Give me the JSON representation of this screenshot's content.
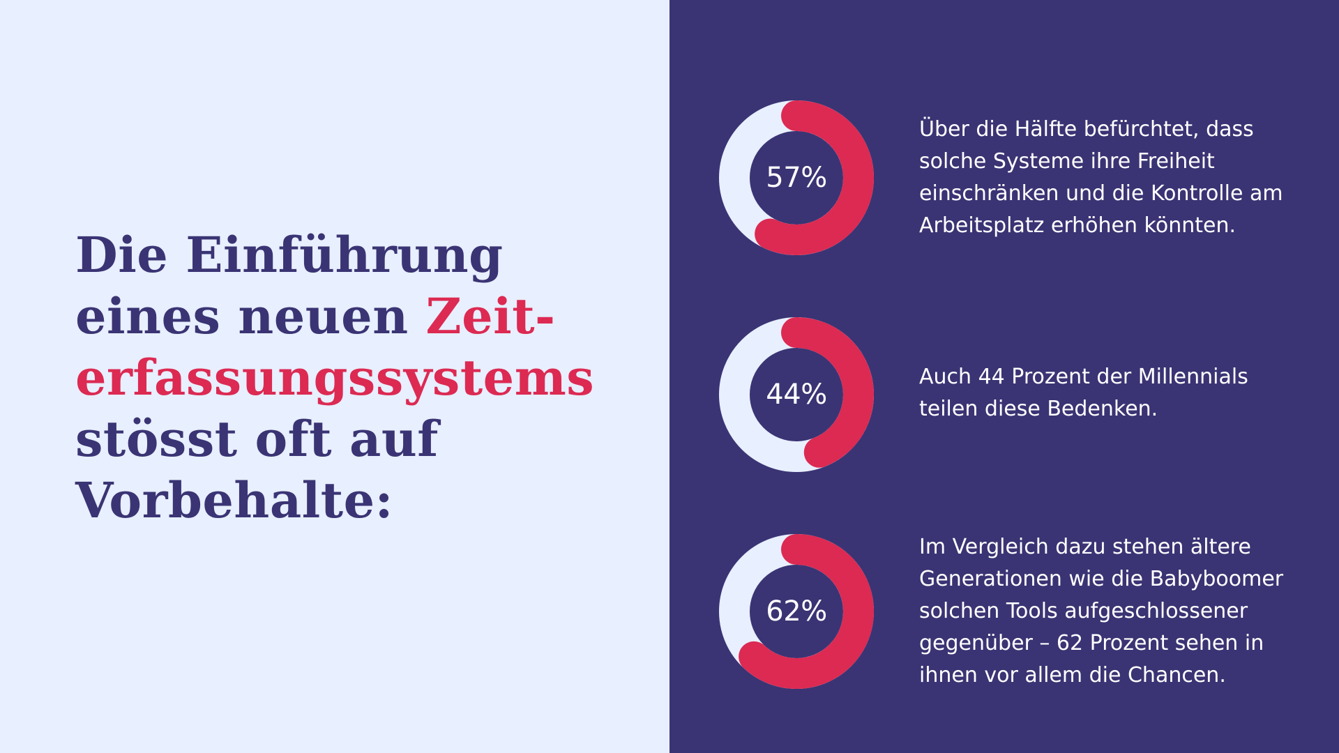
{
  "colors": {
    "left_bg": "#e8effe",
    "right_bg": "#3a3474",
    "navy": "#3a3474",
    "accent": "#dc2a52",
    "ring_track": "#e8effe",
    "text_light": "#ffffff"
  },
  "headline": {
    "line1": "Die Einführung",
    "line2_a": "eines neuen ",
    "line2_b": "Zeit-",
    "line3": "erfassungssystems",
    "line4": "stösst oft auf",
    "line5": "Vorbehalte:"
  },
  "stats": [
    {
      "label": "57%",
      "text": "Über die Hälfte befürchtet, dass solche Systeme ihre Freiheit einschränken und die Kontrolle am Arbeitsplatz erhöhen könnten."
    },
    {
      "label": "44%",
      "text": "Auch 44 Prozent der Millennials teilen diese Bedenken."
    },
    {
      "label": "62%",
      "text": "Im Vergleich dazu stehen ältere Generationen wie die Babyboomer solchen Tools aufgeschlossener gegenüber – 62 Prozent sehen in ihnen vor allem die Chancen."
    }
  ],
  "chart_data": {
    "type": "pie",
    "categories": [
      "57%",
      "44%",
      "62%"
    ],
    "values": [
      57,
      44,
      62
    ]
  }
}
